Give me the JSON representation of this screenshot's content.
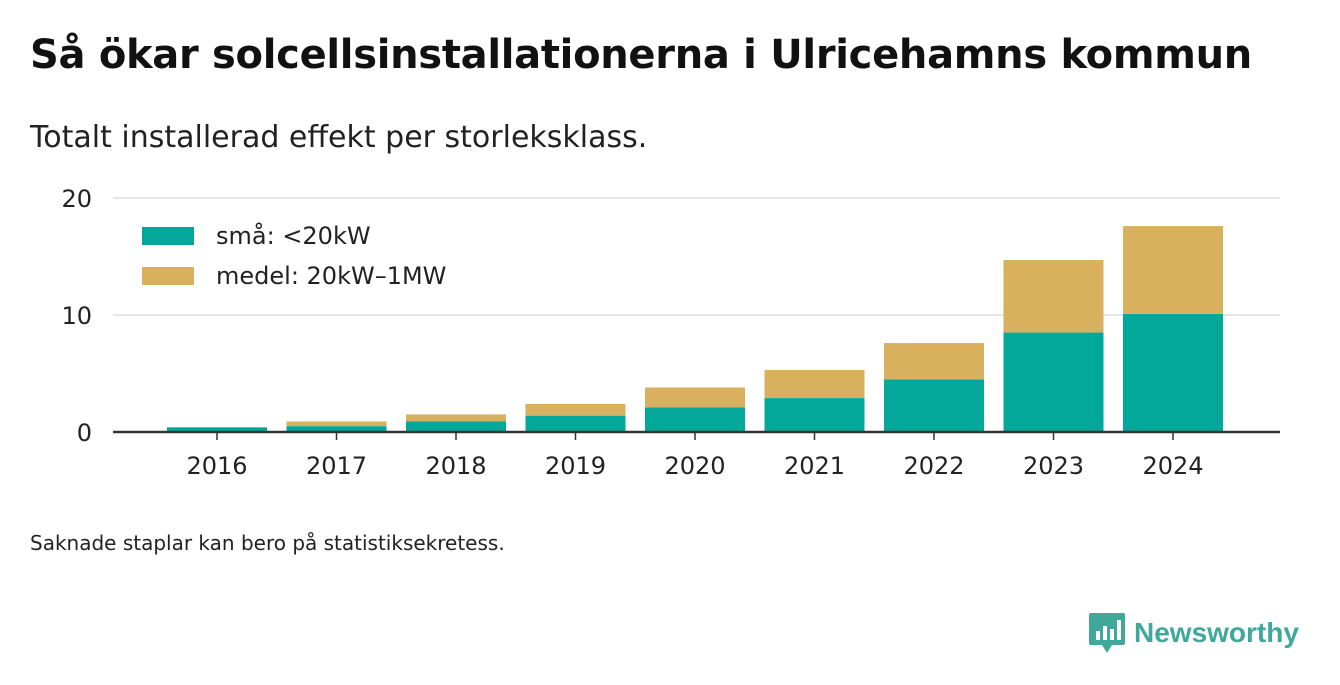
{
  "title": "Så ökar solcellsinstallationerna i Ulricehamns kommun",
  "subtitle": "Totalt installerad effekt per storleksklass.",
  "footnote": "Saknade staplar kan bero på statistiksekretess.",
  "brand": {
    "name": "Newsworthy",
    "icon": "newsworthy-logo-icon",
    "color": "#3fa89a"
  },
  "colors": {
    "small": "#04a89a",
    "medium": "#d9b15e",
    "axis": "#333333",
    "grid": "#dddddd"
  },
  "chart_data": {
    "type": "bar",
    "stacked": true,
    "categories": [
      "2016",
      "2017",
      "2018",
      "2019",
      "2020",
      "2021",
      "2022",
      "2023",
      "2024"
    ],
    "series": [
      {
        "name": "små: <20kW",
        "values": [
          0.4,
          0.5,
          0.9,
          1.4,
          2.1,
          2.9,
          4.5,
          8.5,
          10.1
        ]
      },
      {
        "name": "medel: 20kW–1MW",
        "values": [
          0.0,
          0.4,
          0.6,
          1.0,
          1.7,
          2.4,
          3.1,
          6.2,
          7.5
        ]
      }
    ],
    "yticks": [
      0,
      10,
      20
    ],
    "ylim": [
      0,
      20
    ],
    "grid": true,
    "legend_position": "top-left"
  }
}
